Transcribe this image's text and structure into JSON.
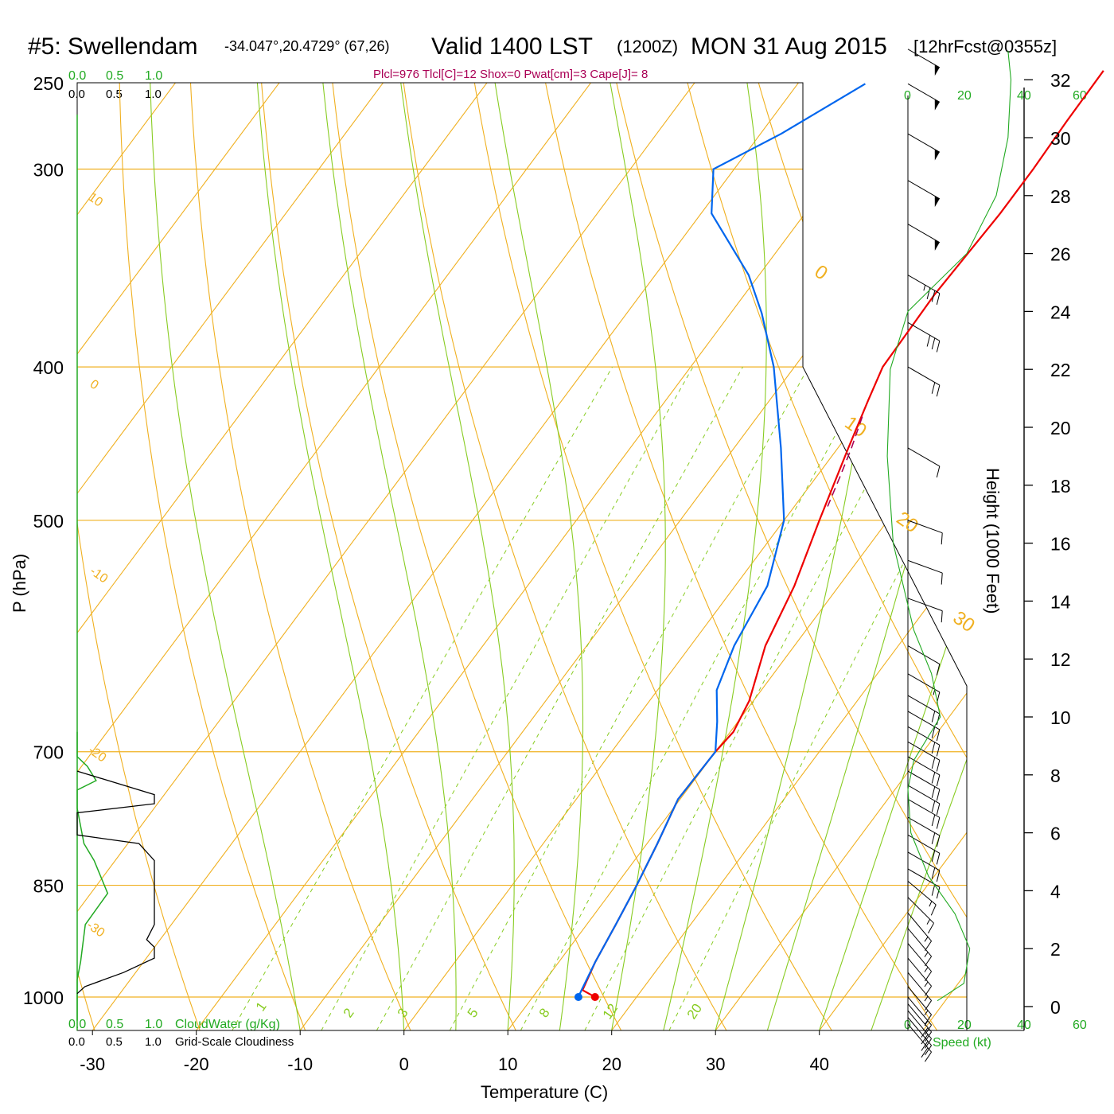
{
  "header": {
    "station": "#5: Swellendam",
    "coords": "-34.047°,20.4729° (67,26)",
    "valid": "Valid 1400 LST",
    "zulu": "(1200Z)",
    "date": "MON 31 Aug 2015",
    "forecast": "[12hrFcst@0355z]"
  },
  "indices": "Plcl=976 Tlcl[C]=12 Shox=0 Pwat[cm]=3 Cape[J]= 8",
  "cloud_scale": {
    "green_ticks": [
      "0.0",
      "0.5",
      "1.0"
    ],
    "black_ticks": [
      "0.0",
      "0.5",
      "1.0"
    ],
    "cloudwater_label": "CloudWater (g/Kg)",
    "cloudiness_label": "Grid-Scale Cloudiness"
  },
  "speed_scale": {
    "ticks": [
      "0",
      "20",
      "40",
      "60"
    ],
    "label": "Speed (kt)"
  },
  "colors": {
    "temperature": "#ee0000",
    "dewpoint": "#0066ee",
    "isotherm": "#f0b020",
    "mixing_ratio": "#88cc22",
    "cloudwater": "#22aa22",
    "speed": "#22aa22",
    "parcel": "#aa0055"
  },
  "chart_data": {
    "type": "line",
    "title": "#5: Swellendam Valid 1400 LST (1200Z) MON 31 Aug 2015",
    "xlabel": "Temperature (C)",
    "ylabel": "P (hPa)",
    "y2label": "Height (1000 Feet)",
    "x_ticks": [
      "-30",
      "-20",
      "-10",
      "0",
      "10",
      "20",
      "30",
      "40"
    ],
    "y_ticks": [
      "250",
      "300",
      "400",
      "500",
      "700",
      "850",
      "1000"
    ],
    "height_ticks": [
      "0",
      "2",
      "4",
      "6",
      "8",
      "10",
      "12",
      "14",
      "16",
      "18",
      "20",
      "22",
      "24",
      "26",
      "28",
      "30",
      "32"
    ],
    "isotherm_labels": [
      "10",
      "0",
      "-10",
      "-20",
      "-30",
      "0",
      "10",
      "20",
      "30"
    ],
    "mixing_ratio_labels": [
      "1",
      "2",
      "3",
      "5",
      "8",
      "12",
      "20"
    ],
    "ylim": [
      250,
      1050
    ],
    "log_pressure": true,
    "series": [
      {
        "name": "Temperature",
        "points": [
          [
            1000,
            16.0
          ],
          [
            990,
            14.3
          ],
          [
            950,
            13.5
          ],
          [
            900,
            12.8
          ],
          [
            850,
            12.0
          ],
          [
            800,
            11.0
          ],
          [
            750,
            9.8
          ],
          [
            700,
            10.0
          ],
          [
            680,
            10.3
          ],
          [
            650,
            9.6
          ],
          [
            600,
            7.2
          ],
          [
            550,
            5.7
          ],
          [
            500,
            3.4
          ],
          [
            450,
            1.0
          ],
          [
            420,
            -0.5
          ],
          [
            400,
            -1.5
          ],
          [
            360,
            -1.7
          ],
          [
            320,
            -1.2
          ],
          [
            300,
            -1.2
          ],
          [
            280,
            -1.4
          ],
          [
            260,
            -1.5
          ]
        ]
      },
      {
        "name": "Dewpoint",
        "points": [
          [
            1000,
            14.4
          ],
          [
            990,
            14.2
          ],
          [
            950,
            13.5
          ],
          [
            900,
            12.8
          ],
          [
            850,
            12.0
          ],
          [
            800,
            11.0
          ],
          [
            750,
            9.8
          ],
          [
            700,
            10.0
          ],
          [
            670,
            8.0
          ],
          [
            640,
            5.7
          ],
          [
            600,
            4.2
          ],
          [
            550,
            3.1
          ],
          [
            500,
            0.0
          ],
          [
            450,
            -5.5
          ],
          [
            400,
            -12.0
          ],
          [
            370,
            -17.0
          ],
          [
            350,
            -21.0
          ],
          [
            320,
            -29.0
          ],
          [
            300,
            -32.0
          ],
          [
            285,
            -28.0
          ],
          [
            265,
            -23.5
          ]
        ]
      },
      {
        "name": "Parcel",
        "points": [
          [
            430,
            0.1
          ],
          [
            450,
            1.3
          ],
          [
            470,
            2.3
          ],
          [
            490,
            3.2
          ]
        ]
      }
    ],
    "wind_barbs": [
      [
        1040,
        320,
        20
      ],
      [
        1030,
        320,
        20
      ],
      [
        1020,
        320,
        20
      ],
      [
        1010,
        320,
        20
      ],
      [
        1000,
        320,
        15
      ],
      [
        985,
        320,
        15
      ],
      [
        965,
        320,
        15
      ],
      [
        945,
        320,
        15
      ],
      [
        925,
        320,
        15
      ],
      [
        905,
        320,
        15
      ],
      [
        885,
        320,
        15
      ],
      [
        865,
        315,
        15
      ],
      [
        845,
        310,
        15
      ],
      [
        830,
        300,
        20
      ],
      [
        810,
        300,
        20
      ],
      [
        790,
        300,
        20
      ],
      [
        770,
        300,
        20
      ],
      [
        750,
        300,
        20
      ],
      [
        735,
        300,
        20
      ],
      [
        720,
        300,
        20
      ],
      [
        705,
        300,
        20
      ],
      [
        690,
        300,
        20
      ],
      [
        675,
        300,
        20
      ],
      [
        660,
        300,
        20
      ],
      [
        645,
        300,
        20
      ],
      [
        625,
        300,
        15
      ],
      [
        600,
        300,
        10
      ],
      [
        560,
        290,
        10
      ],
      [
        530,
        290,
        10
      ],
      [
        500,
        290,
        10
      ],
      [
        450,
        300,
        10
      ],
      [
        400,
        300,
        20
      ],
      [
        375,
        300,
        30
      ],
      [
        350,
        300,
        35
      ],
      [
        325,
        300,
        50
      ],
      [
        305,
        300,
        50
      ],
      [
        285,
        300,
        50
      ],
      [
        265,
        300,
        50
      ],
      [
        252,
        300,
        50
      ]
    ],
    "wind_speed_profile": [
      [
        0.2,
        10
      ],
      [
        0.8,
        19
      ],
      [
        2.0,
        21
      ],
      [
        3.2,
        16
      ],
      [
        4.5,
        7
      ],
      [
        6.0,
        1
      ],
      [
        7.5,
        0
      ],
      [
        8.5,
        2
      ],
      [
        10.0,
        11
      ],
      [
        11.5,
        8
      ],
      [
        13.0,
        2
      ],
      [
        16.0,
        -5
      ],
      [
        19.0,
        -7
      ],
      [
        22.0,
        -6
      ],
      [
        24.0,
        0
      ],
      [
        26.0,
        20
      ],
      [
        28.0,
        30
      ],
      [
        30.0,
        34
      ],
      [
        32.0,
        35
      ],
      [
        33.0,
        34
      ]
    ],
    "cloudwater_profile": [
      [
        1035,
        0.0
      ],
      [
        1000,
        0.0
      ],
      [
        975,
        0.0
      ],
      [
        950,
        0.05
      ],
      [
        900,
        0.12
      ],
      [
        860,
        0.45
      ],
      [
        820,
        0.25
      ],
      [
        800,
        0.1
      ],
      [
        760,
        0.0
      ],
      [
        740,
        0.0
      ],
      [
        730,
        0.28
      ],
      [
        715,
        0.15
      ],
      [
        705,
        0.0
      ],
      [
        680,
        0.0
      ]
    ],
    "cloudiness_profile": [
      [
        995,
        0.0
      ],
      [
        985,
        0.1
      ],
      [
        965,
        0.6
      ],
      [
        945,
        1.0
      ],
      [
        930,
        1.0
      ],
      [
        920,
        0.9
      ],
      [
        900,
        1.0
      ],
      [
        880,
        1.0
      ],
      [
        820,
        1.0
      ],
      [
        800,
        0.8
      ],
      [
        790,
        0.0
      ],
      [
        765,
        0.0
      ],
      [
        755,
        1.0
      ],
      [
        745,
        1.0
      ],
      [
        720,
        0.0
      ]
    ]
  }
}
